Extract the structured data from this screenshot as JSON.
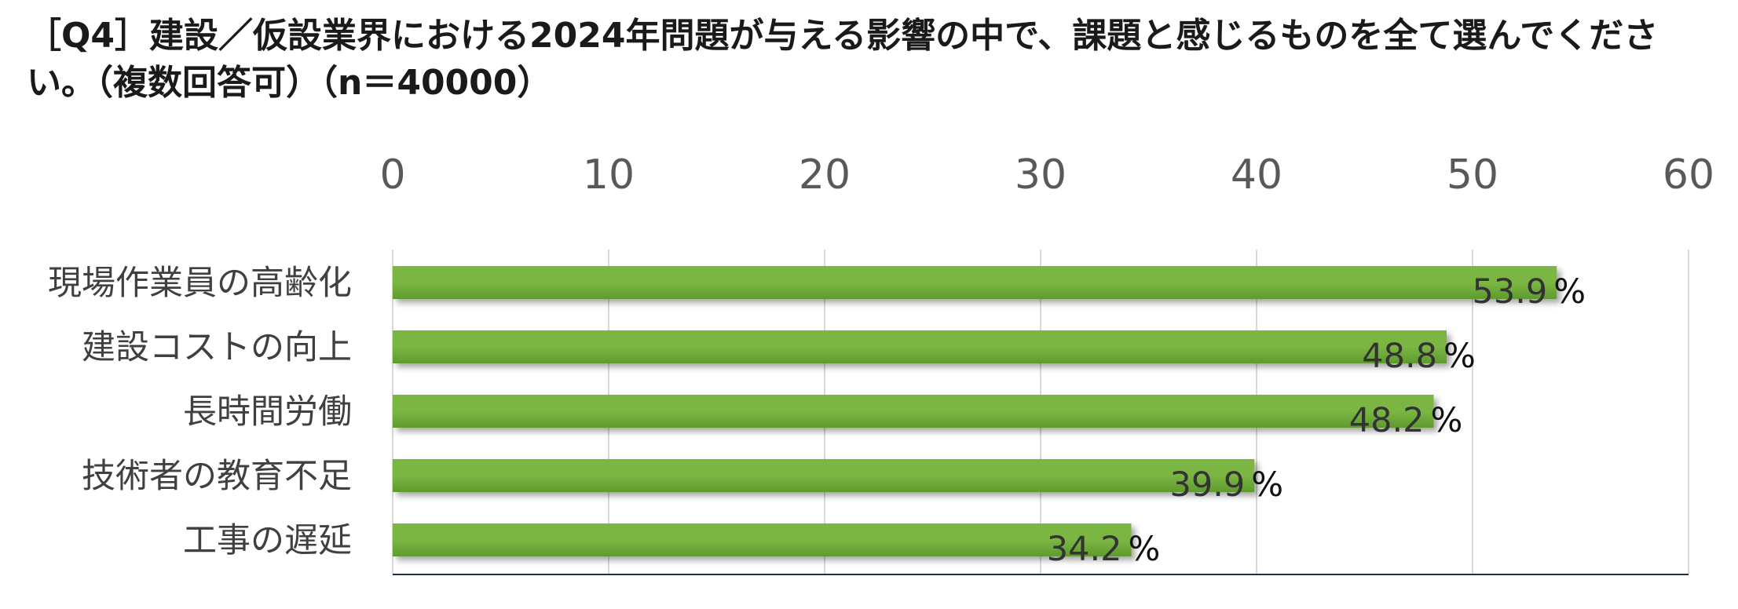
{
  "chart_data": {
    "type": "bar",
    "orientation": "horizontal",
    "title": "［Q4］建設／仮設業界における2024年問題が与える影響の中で、課題と感じるものを全て選んでください。（複数回答可）（n＝40000）",
    "categories": [
      "現場作業員の高齢化",
      "建設コストの向上",
      "長時間労働",
      "技術者の教育不足",
      "工事の遅延"
    ],
    "values": [
      53.9,
      48.8,
      48.2,
      39.9,
      34.2
    ],
    "value_suffix": "%",
    "xlim": [
      0,
      60
    ],
    "xticks": [
      0,
      10,
      20,
      30,
      40,
      50,
      60
    ],
    "x_axis_position": "top",
    "grid": true,
    "legend": "none",
    "colors": {
      "bar": "#7bb643",
      "bar_dark": "#5e9a2e",
      "grid": "#d9d9d9",
      "axis": "#1f3046"
    }
  }
}
